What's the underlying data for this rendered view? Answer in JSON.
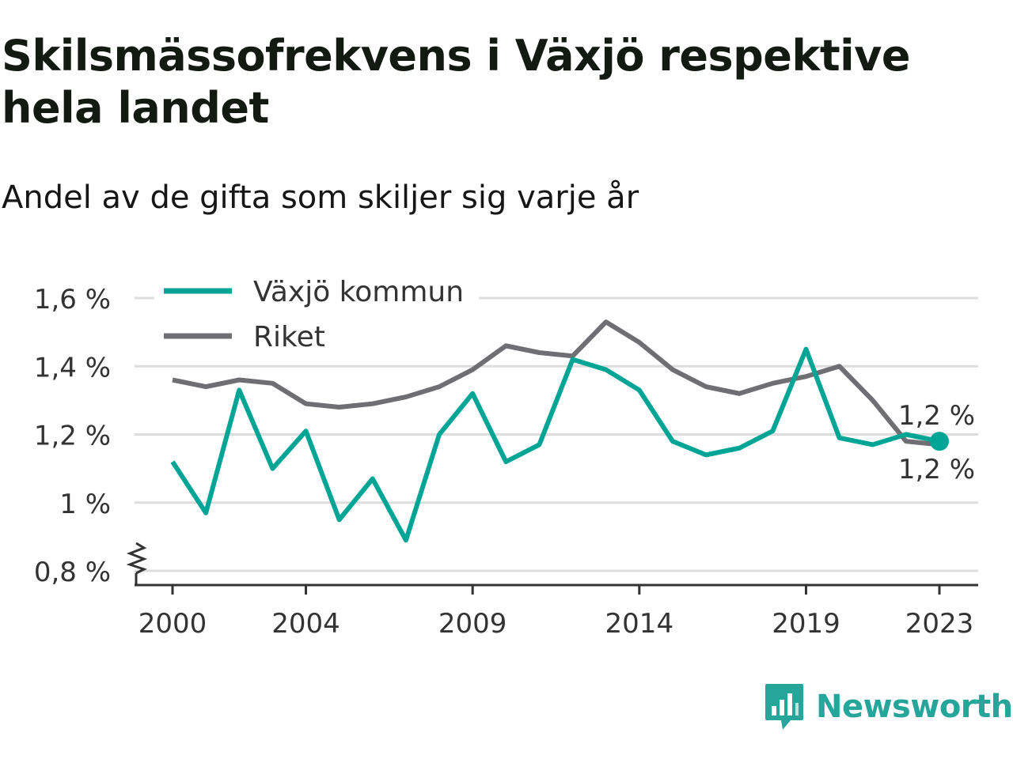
{
  "title": "Skilsmässofrekvens i Växjö respektive hela landet",
  "subtitle": "Andel av de gifta som skiljer sig varje år",
  "brand": {
    "name": "Newsworthy",
    "icon": "newsworthy-logo-icon",
    "color": "#26a69a"
  },
  "chart_data": {
    "type": "line",
    "title": "Skilsmässofrekvens i Växjö respektive hela landet",
    "subtitle": "Andel av de gifta som skiljer sig varje år",
    "xlabel": "",
    "ylabel": "",
    "x": [
      2000,
      2001,
      2002,
      2003,
      2004,
      2005,
      2006,
      2007,
      2008,
      2009,
      2010,
      2011,
      2012,
      2013,
      2014,
      2015,
      2016,
      2017,
      2018,
      2019,
      2020,
      2021,
      2022,
      2023
    ],
    "x_ticks": [
      2000,
      2004,
      2009,
      2014,
      2019,
      2023
    ],
    "x_tick_labels": [
      "2000",
      "2004",
      "2009",
      "2014",
      "2019",
      "2023"
    ],
    "ylim": [
      0.8,
      1.6
    ],
    "y_ticks": [
      0.8,
      1.0,
      1.2,
      1.4,
      1.6
    ],
    "y_tick_labels": [
      "0,8 %",
      "1 %",
      "1,2 %",
      "1,4 %",
      "1,6 %"
    ],
    "y_axis_break": true,
    "grid": true,
    "legend_position": "top-left",
    "series": [
      {
        "name": "Växjö kommun",
        "color": "#00a596",
        "values": [
          1.12,
          0.97,
          1.33,
          1.1,
          1.21,
          0.95,
          1.07,
          0.89,
          1.2,
          1.32,
          1.12,
          1.17,
          1.42,
          1.39,
          1.33,
          1.18,
          1.14,
          1.16,
          1.21,
          1.45,
          1.19,
          1.17,
          1.2,
          1.18
        ],
        "end_label": "1,2 %"
      },
      {
        "name": "Riket",
        "color": "#6e6e73",
        "values": [
          1.36,
          1.34,
          1.36,
          1.35,
          1.29,
          1.28,
          1.29,
          1.31,
          1.34,
          1.39,
          1.46,
          1.44,
          1.43,
          1.53,
          1.47,
          1.39,
          1.34,
          1.32,
          1.35,
          1.37,
          1.4,
          1.3,
          1.18,
          1.17
        ],
        "end_label": "1,2 %"
      }
    ]
  }
}
